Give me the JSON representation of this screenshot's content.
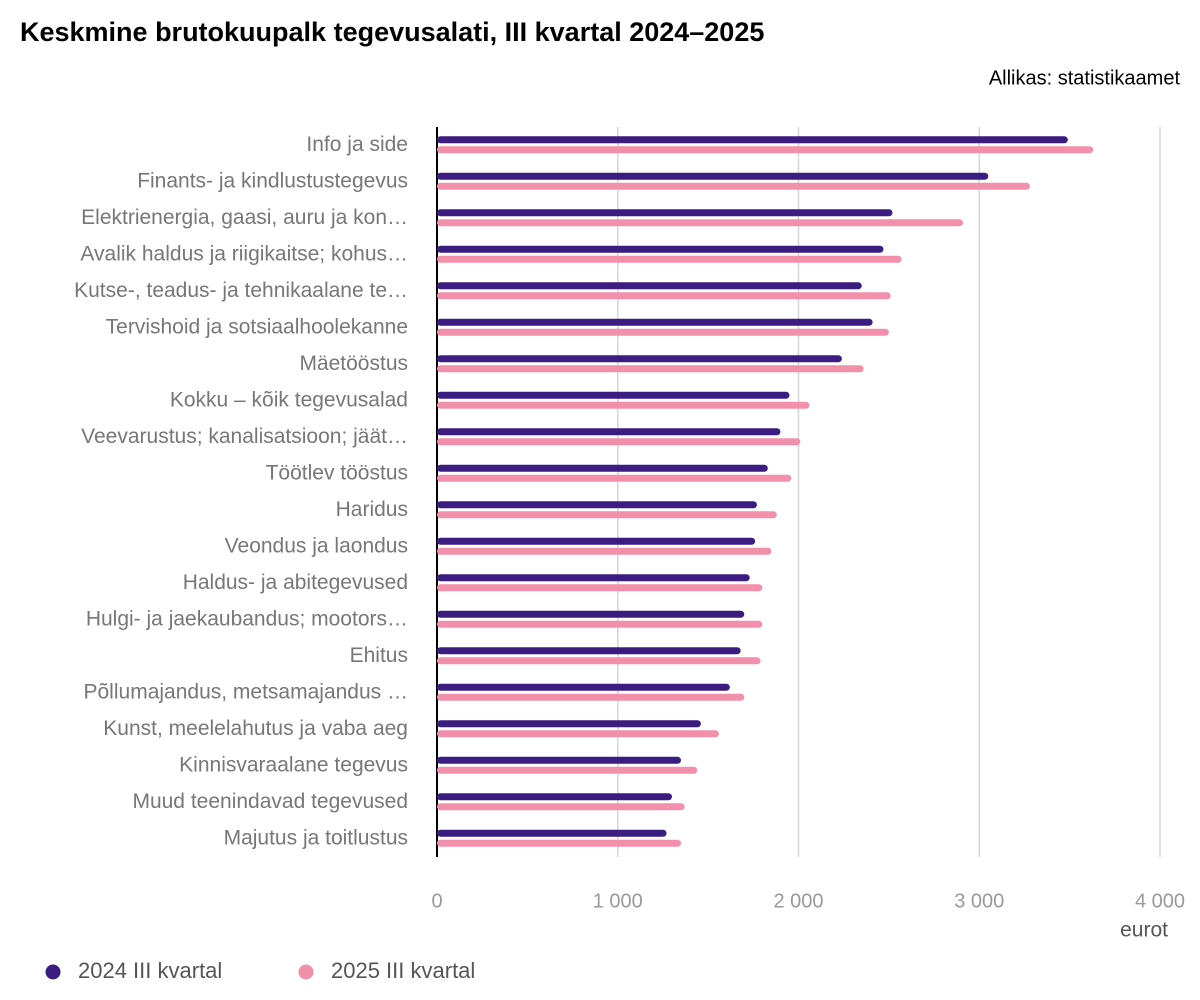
{
  "chart_data": {
    "type": "hbar",
    "title": "Keskmine brutokuupalk tegevusalati, III kvartal 2024–2025",
    "source": "Allikas: statistikaamet",
    "xlabel": "eurot",
    "categories": [
      "Info ja side",
      "Finants- ja kindlustustegevus",
      "Elektrienergia, gaasi, auru ja kon…",
      "Avalik haldus ja riigikaitse; kohus…",
      "Kutse-, teadus- ja tehnikaalane te…",
      "Tervishoid ja sotsiaalhoolekanne",
      "Mäetööstus",
      "Kokku – kõik tegevusalad",
      "Veevarustus; kanalisatsioon; jäät…",
      "Töötlev tööstus",
      "Haridus",
      "Veondus ja laondus",
      "Haldus- ja abitegevused",
      "Hulgi- ja jaekaubandus; mootors…",
      "Ehitus",
      "Põllumajandus, metsamajandus …",
      "Kunst, meelelahutus ja vaba aeg",
      "Kinnisvaraalane tegevus",
      "Muud teenindavad tegevused",
      "Majutus ja toitlustus"
    ],
    "series": [
      {
        "name": "2024 III kvartal",
        "color": "#3b1c80",
        "values": [
          3490,
          3050,
          2520,
          2470,
          2350,
          2410,
          2240,
          1950,
          1900,
          1830,
          1770,
          1760,
          1730,
          1700,
          1680,
          1620,
          1460,
          1350,
          1300,
          1270
        ]
      },
      {
        "name": "2025 III kvartal",
        "color": "#f28fab",
        "values": [
          3630,
          3280,
          2910,
          2570,
          2510,
          2500,
          2360,
          2060,
          2010,
          1960,
          1880,
          1850,
          1800,
          1800,
          1790,
          1700,
          1560,
          1440,
          1370,
          1350
        ]
      }
    ],
    "xlim": [
      0,
      4000
    ],
    "xticks": [
      0,
      {
        "value": 1000,
        "label": "1 000"
      },
      {
        "value": 2000,
        "label": "2 000"
      },
      {
        "value": 3000,
        "label": "3 000"
      },
      {
        "value": 4000,
        "label": "4 000"
      }
    ],
    "grid": true
  }
}
